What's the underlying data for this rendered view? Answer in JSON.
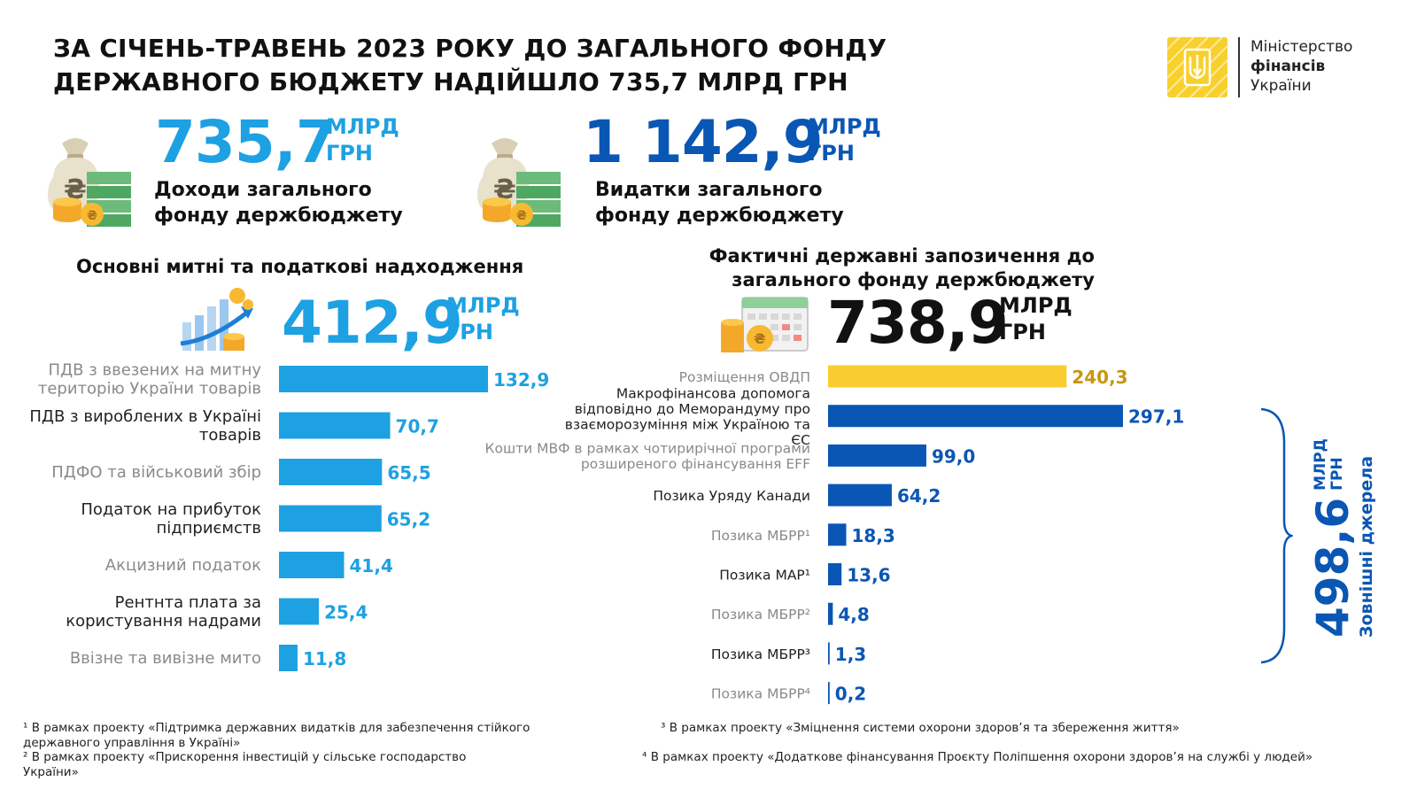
{
  "header": {
    "title_line1": "ЗА СІЧЕНЬ-ТРАВЕНЬ  2023 РОКУ ДО ЗАГАЛЬНОГО ФОНДУ",
    "title_line2": "ДЕРЖАВНОГО БЮДЖЕТУ НАДІЙШЛО 735,7 МЛРД ГРН"
  },
  "logo": {
    "line1": "Міністерство",
    "line2": "фінансів",
    "line3": "України"
  },
  "unit_top": "МЛРД",
  "unit_bottom": "ГРН",
  "revenue": {
    "value": "735,7",
    "caption_line1": "Доходи загального",
    "caption_line2": "фонду держбюджету"
  },
  "expenses": {
    "value": "1 142,9",
    "caption_line1": "Видатки загального",
    "caption_line2": "фонду держбюджету"
  },
  "taxes": {
    "heading": "Основні митні та податкові надходження",
    "total": "412,9"
  },
  "borrowings": {
    "heading_line1": "Фактичні державні запозичення до",
    "heading_line2": "загального фонду держбюджету",
    "total": "738,9"
  },
  "external": {
    "value": "498,6",
    "unit_line1": "МЛРД",
    "unit_line2": "ГРН",
    "label": "Зовнішні джерела"
  },
  "colors": {
    "light_blue": "#1da1e2",
    "dark_blue": "#0a56b4",
    "yellow": "#f8cd30",
    "yellow_text": "#c9960e",
    "grey_label": "#8a8a8a"
  },
  "chart_data": [
    {
      "type": "bar",
      "orientation": "horizontal",
      "title": "Основні митні та податкові надходження",
      "categories": [
        [
          "ПДВ з ввезених на митну",
          "територію України товарів"
        ],
        [
          "ПДВ з вироблених в Україні",
          "товарів"
        ],
        [
          "ПДФО та військовий збір"
        ],
        [
          "Податок на прибуток",
          "підприємств"
        ],
        [
          "Акцизний податок"
        ],
        [
          "Рентнта плата за",
          "користування надрами"
        ],
        [
          "Ввізне та вивізне мито"
        ]
      ],
      "values": [
        132.9,
        70.7,
        65.5,
        65.2,
        41.4,
        25.4,
        11.8
      ],
      "value_labels": [
        "132,9",
        "70,7",
        "65,5",
        "65,2",
        "41,4",
        "25,4",
        "11,8"
      ],
      "label_muted": [
        true,
        false,
        true,
        false,
        true,
        false,
        true
      ],
      "bar_color": "#1da1e2"
    },
    {
      "type": "bar",
      "orientation": "horizontal",
      "title": "Фактичні державні запозичення до загального фонду держбюджету",
      "categories": [
        [
          "Розміщення ОВДП"
        ],
        [
          "Макрофінансова допомога",
          "відповідно до Меморандуму про",
          "взаєморозуміння між Україною та",
          "ЄС"
        ],
        [
          "Кошти МВФ в рамках чотирирічної програми",
          "розширеного фінансування EFF"
        ],
        [
          "Позика Уряду Канади"
        ],
        [
          "Позика МБРР¹"
        ],
        [
          "Позика МАР¹"
        ],
        [
          "Позика МБРР²"
        ],
        [
          "Позика МБРР³"
        ],
        [
          "Позика МБРР⁴"
        ]
      ],
      "values": [
        240.3,
        297.1,
        99.0,
        64.2,
        18.3,
        13.6,
        4.8,
        1.3,
        0.2
      ],
      "value_labels": [
        "240,3",
        "297,1",
        "99,0",
        "64,2",
        "18,3",
        "13,6",
        "4,8",
        "1,3",
        "0,2"
      ],
      "label_muted": [
        true,
        false,
        true,
        false,
        true,
        false,
        true,
        false,
        true
      ],
      "bar_colors": [
        "#f8cd30",
        "#0a56b4",
        "#0a56b4",
        "#0a56b4",
        "#0a56b4",
        "#0a56b4",
        "#0a56b4",
        "#0a56b4",
        "#0a56b4"
      ]
    }
  ],
  "footnotes": {
    "f1_line1": "¹ В рамках проекту «Підтримка державних видатків для забезпечення стійкого",
    "f1_line2": "державного управління в Україні»",
    "f2_line1": "² В рамках проекту «Прискорення інвестицій у сільське господарство",
    "f2_line2": "України»",
    "f3": "³ В рамках проекту «Зміцнення системи охорони здоров’я та збереження життя»",
    "f4": "⁴ В рамках проекту «Додаткове фінансування Проєкту Поліпшення охорони здоров’я на службі у людей»"
  }
}
